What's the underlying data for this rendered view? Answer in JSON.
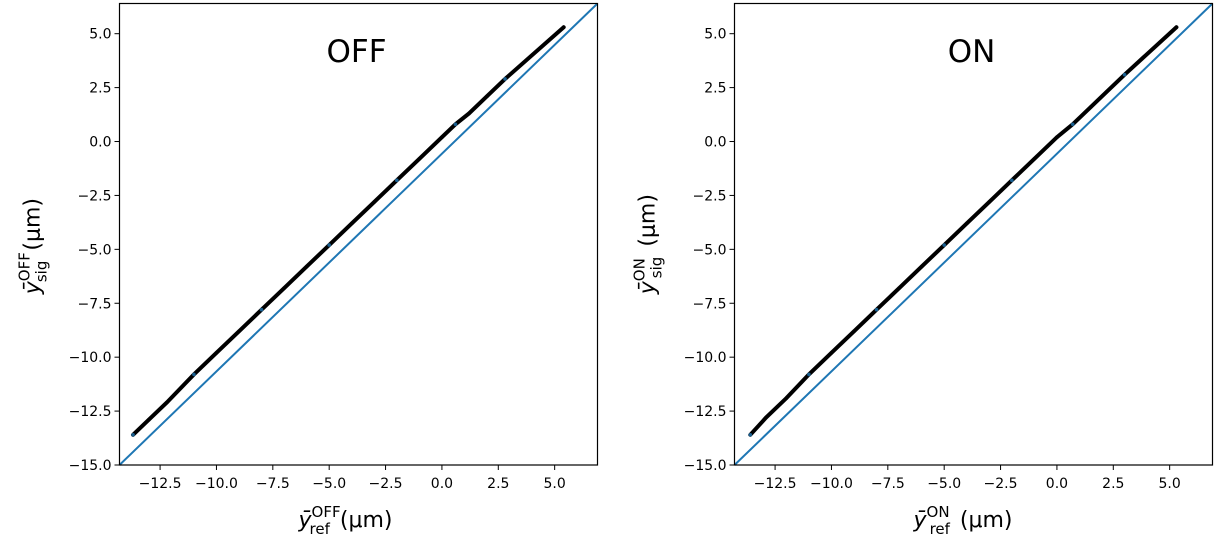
{
  "chart_data": [
    {
      "type": "scatter",
      "title": "OFF",
      "xlabel": {
        "base": "ȳ",
        "sup": "OFF",
        "sub": "ref",
        "unit": "(μm)"
      },
      "ylabel": {
        "base": "ȳ",
        "sup": "OFF",
        "sub": "sig",
        "unit": "(μm)"
      },
      "xlim": [
        -14.3,
        6.9
      ],
      "ylim": [
        -15.0,
        6.4
      ],
      "xticks": [
        "−12.5",
        "−10.0",
        "−7.5",
        "−5.0",
        "−2.5",
        "0.0",
        "2.5",
        "5.0"
      ],
      "yticks": [
        "−15.0",
        "−12.5",
        "−10.0",
        "−7.5",
        "−5.0",
        "−2.5",
        "0.0",
        "2.5",
        "5.0"
      ],
      "grid": false,
      "series": [
        {
          "points": [
            [
              -13.7,
              -13.6
            ],
            [
              -13.0,
              -12.9
            ],
            [
              -12.2,
              -12.1
            ],
            [
              -11.0,
              -10.8
            ],
            [
              -10.0,
              -9.8
            ],
            [
              -9.0,
              -8.8
            ],
            [
              -8.0,
              -7.8
            ],
            [
              -7.0,
              -6.8
            ],
            [
              -6.0,
              -5.8
            ],
            [
              -5.0,
              -4.8
            ],
            [
              -4.0,
              -3.8
            ],
            [
              -3.0,
              -2.8
            ],
            [
              -2.0,
              -1.8
            ],
            [
              -1.0,
              -0.8
            ],
            [
              0.0,
              0.2
            ],
            [
              0.6,
              0.8
            ],
            [
              1.2,
              1.3
            ],
            [
              2.0,
              2.1
            ],
            [
              2.8,
              2.9
            ],
            [
              5.4,
              5.3
            ]
          ]
        },
        {
          "line": [
            [
              -14.3,
              -15.0
            ],
            [
              6.9,
              6.4
            ]
          ]
        }
      ],
      "colors": {
        "line": "#1f77b4",
        "points": "#000000",
        "points_alt": "#1f77b4"
      }
    },
    {
      "type": "scatter",
      "title": "ON",
      "xlabel": {
        "base": "ȳ",
        "sup": "ON",
        "sub": "ref",
        "unit": "(μm)"
      },
      "ylabel": {
        "base": "ȳ",
        "sup": "ON",
        "sub": "sig",
        "unit": "(μm)"
      },
      "xlim": [
        -14.3,
        6.9
      ],
      "ylim": [
        -15.0,
        6.4
      ],
      "xticks": [
        "−12.5",
        "−10.0",
        "−7.5",
        "−5.0",
        "−2.5",
        "0.0",
        "2.5",
        "5.0"
      ],
      "yticks": [
        "−15.0",
        "−12.5",
        "−10.0",
        "−7.5",
        "−5.0",
        "−2.5",
        "0.0",
        "2.5",
        "5.0"
      ],
      "grid": false,
      "series": [
        {
          "points": [
            [
              -13.6,
              -13.6
            ],
            [
              -12.9,
              -12.8
            ],
            [
              -12.0,
              -11.9
            ],
            [
              -11.0,
              -10.8
            ],
            [
              -10.0,
              -9.8
            ],
            [
              -9.0,
              -8.8
            ],
            [
              -8.0,
              -7.8
            ],
            [
              -7.0,
              -6.8
            ],
            [
              -6.0,
              -5.8
            ],
            [
              -5.0,
              -4.8
            ],
            [
              -4.0,
              -3.8
            ],
            [
              -3.0,
              -2.8
            ],
            [
              -2.0,
              -1.8
            ],
            [
              -1.0,
              -0.8
            ],
            [
              0.0,
              0.2
            ],
            [
              0.7,
              0.8
            ],
            [
              1.5,
              1.6
            ],
            [
              2.2,
              2.3
            ],
            [
              3.0,
              3.1
            ],
            [
              5.3,
              5.3
            ]
          ]
        },
        {
          "line": [
            [
              -14.3,
              -15.0
            ],
            [
              6.9,
              6.4
            ]
          ]
        }
      ],
      "colors": {
        "line": "#1f77b4",
        "points": "#000000",
        "points_alt": "#1f77b4"
      }
    }
  ]
}
